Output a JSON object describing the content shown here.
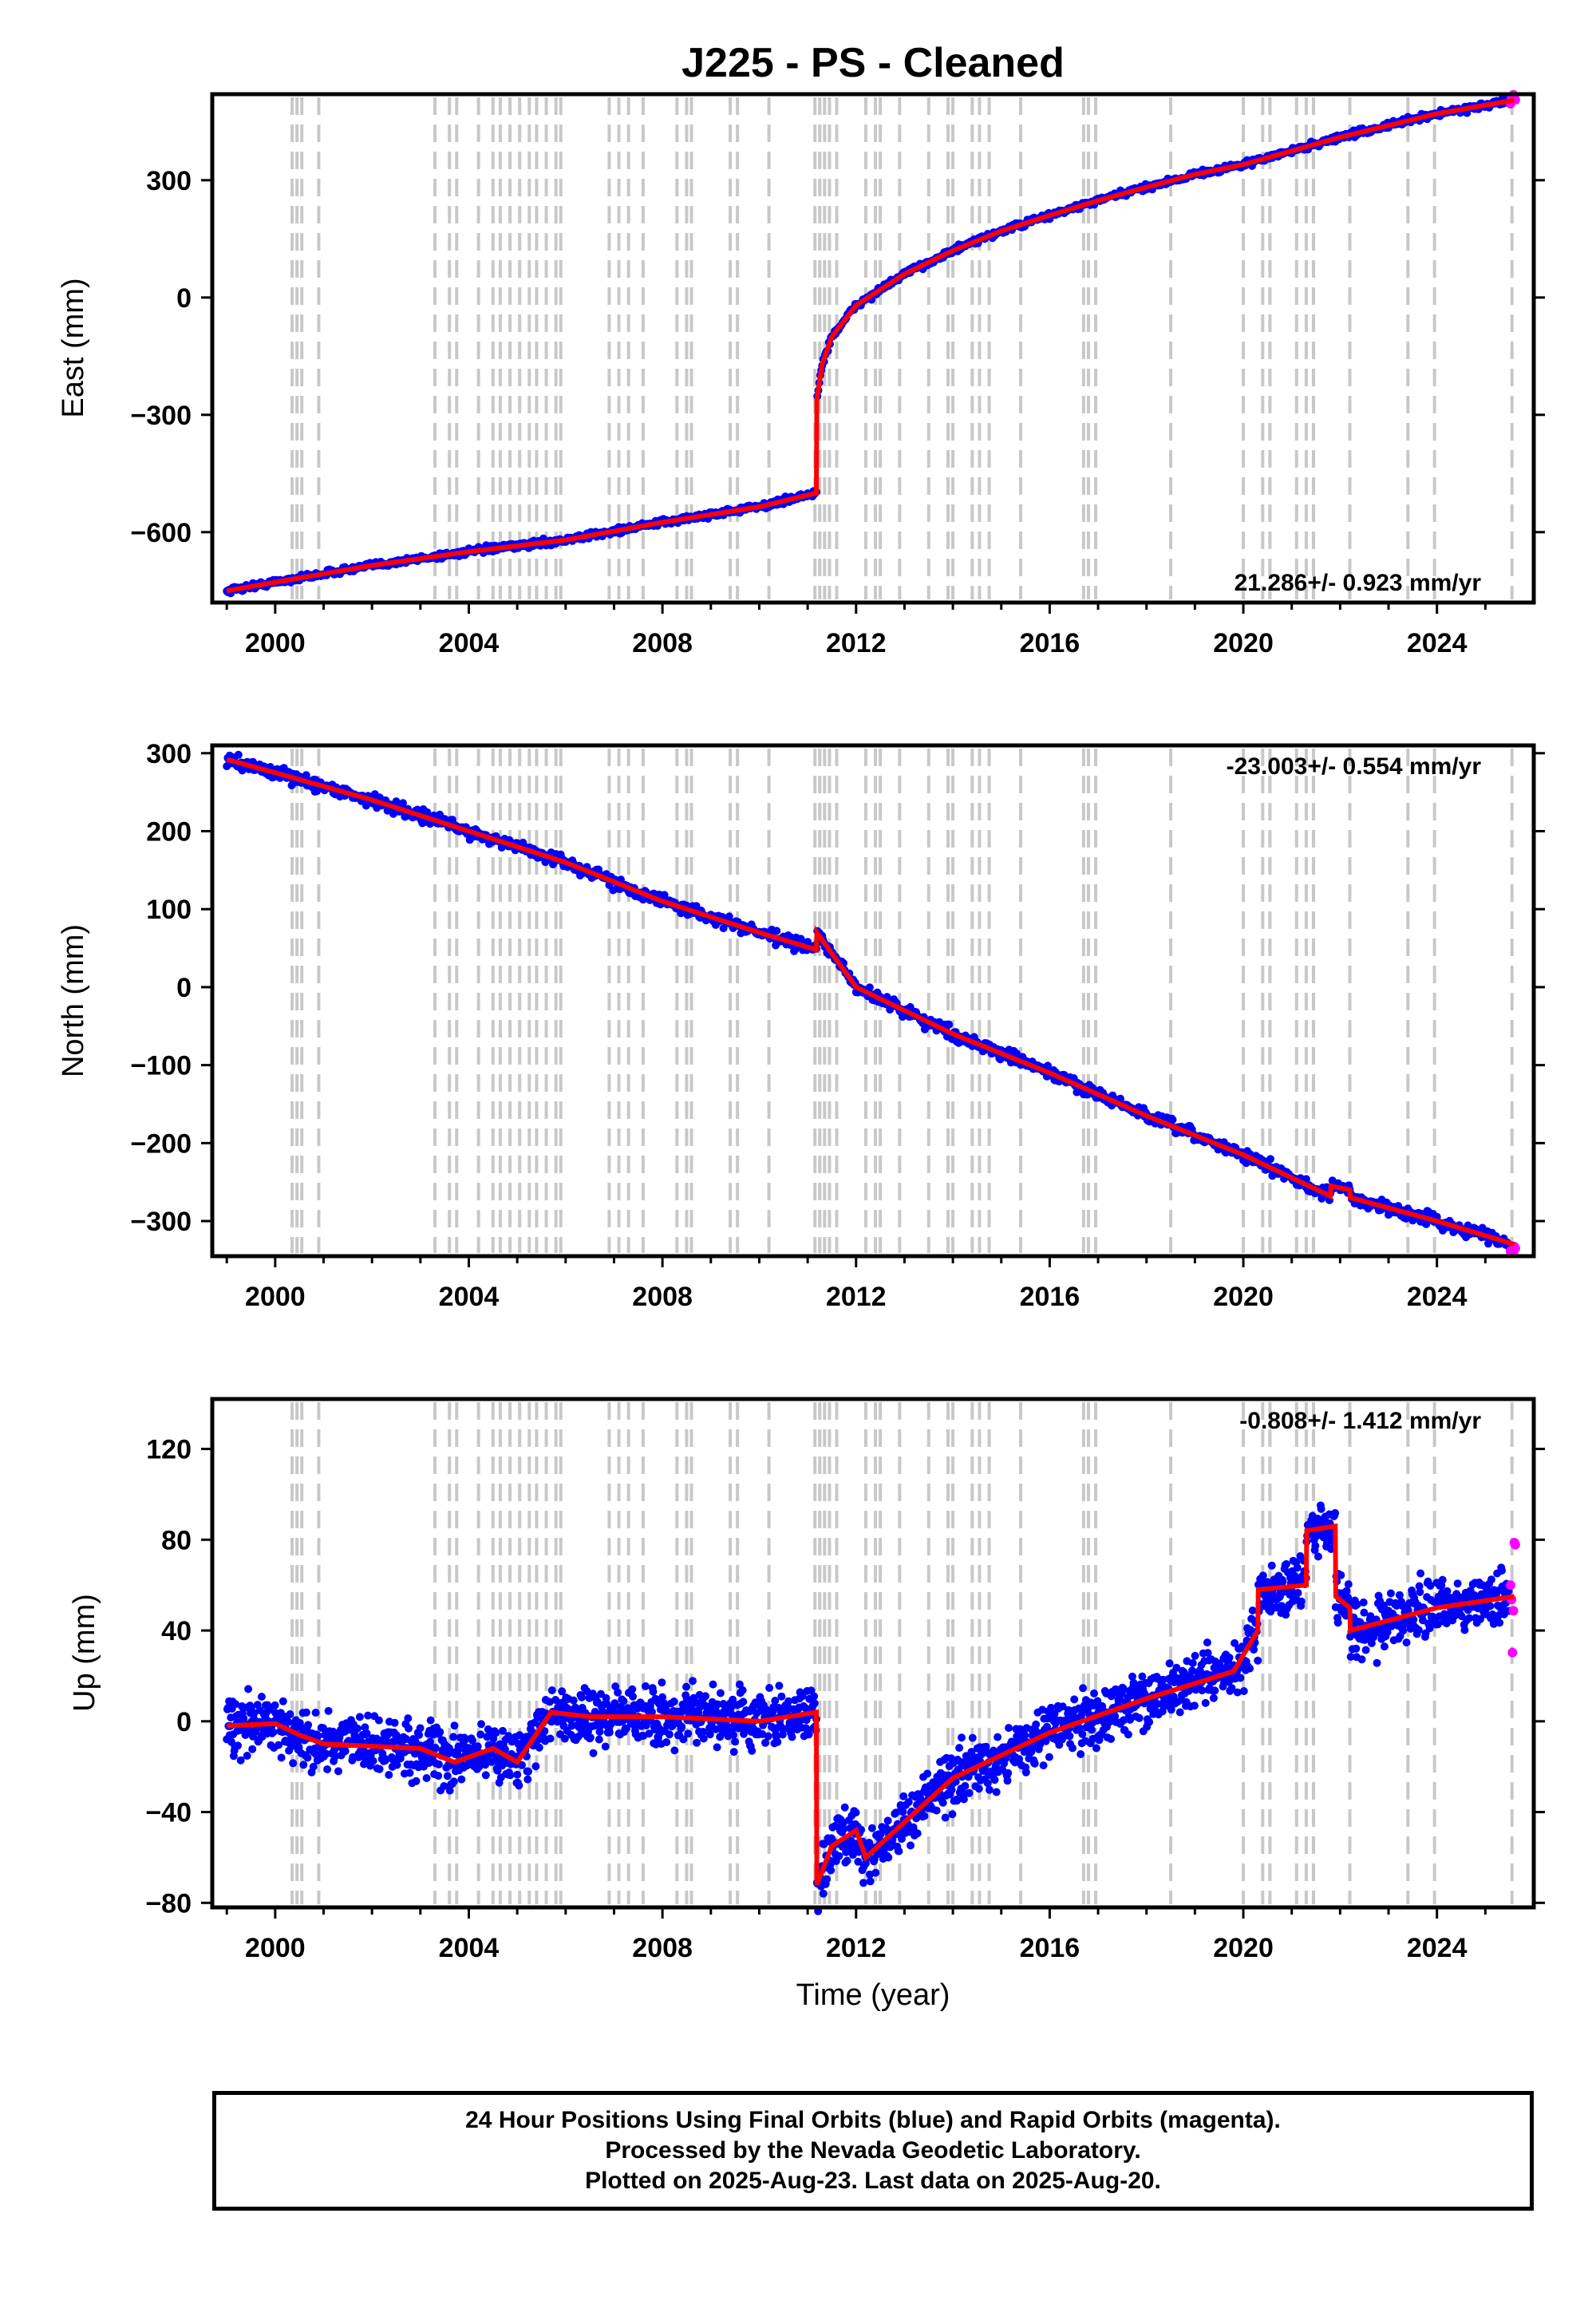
{
  "title": "J225  - PS - Cleaned",
  "footer": {
    "line1": "24 Hour Positions Using Final Orbits (blue) and Rapid Orbits (magenta).",
    "line2": "Processed by the Nevada Geodetic Laboratory.",
    "line3": "Plotted on 2025-Aug-23. Last data on 2025-Aug-20."
  },
  "colors": {
    "final_orbits": "#0000ff",
    "rapid_orbits": "#ff00ff",
    "model": "#ff0000",
    "event_lines": "#c8c8c8"
  },
  "chart_data": [
    {
      "type": "scatter",
      "name": "east",
      "ylabel": "East (mm)",
      "xlabel": "",
      "xlim": [
        1998.7,
        2026.0
      ],
      "ylim": [
        -780,
        520
      ],
      "yticks": [
        -600,
        -300,
        0,
        300
      ],
      "xticks": [
        2000,
        2004,
        2008,
        2012,
        2016,
        2020,
        2024
      ],
      "rate_label": "21.286+/- 0.923 mm/yr",
      "rate_position": "bottom-right",
      "model_series": {
        "x": [
          1999.0,
          2000.0,
          2002.0,
          2004.0,
          2006.0,
          2008.0,
          2010.0,
          2011.18,
          2011.19,
          2011.3,
          2011.5,
          2012.0,
          2013.0,
          2014.0,
          2015.0,
          2016.0,
          2017.0,
          2018.0,
          2019.0,
          2020.0,
          2021.0,
          2022.0,
          2023.0,
          2024.0,
          2025.6
        ],
        "y": [
          -750,
          -728,
          -685,
          -650,
          -620,
          -575,
          -535,
          -500,
          -260,
          -170,
          -100,
          -20,
          60,
          120,
          170,
          210,
          248,
          282,
          315,
          340,
          375,
          410,
          440,
          470,
          505
        ]
      },
      "noise_mm": 4
    },
    {
      "type": "scatter",
      "name": "north",
      "ylabel": "North (mm)",
      "xlabel": "",
      "xlim": [
        1998.7,
        2026.0
      ],
      "ylim": [
        -345,
        310
      ],
      "yticks": [
        -300,
        -200,
        -100,
        0,
        100,
        200,
        300
      ],
      "xticks": [
        2000,
        2004,
        2008,
        2012,
        2016,
        2020,
        2024
      ],
      "rate_label": "-23.003+/- 0.554 mm/yr",
      "rate_position": "top-right",
      "model_series": {
        "x": [
          1999.0,
          2000.0,
          2002.0,
          2004.0,
          2006.0,
          2008.0,
          2010.0,
          2011.18,
          2011.19,
          2012.0,
          2014.0,
          2016.0,
          2018.0,
          2020.0,
          2021.8,
          2021.81,
          2022.2,
          2022.21,
          2024.0,
          2025.6
        ],
        "y": [
          292,
          275,
          240,
          200,
          160,
          110,
          70,
          48,
          70,
          0,
          -60,
          -110,
          -165,
          -215,
          -268,
          -255,
          -260,
          -270,
          -300,
          -330
        ]
      },
      "noise_mm": 4
    },
    {
      "type": "scatter",
      "name": "up",
      "ylabel": "Up (mm)",
      "xlabel": "Time (year)",
      "xlim": [
        1998.7,
        2026.0
      ],
      "ylim": [
        -82,
        142
      ],
      "yticks": [
        -80,
        -40,
        0,
        40,
        80,
        120
      ],
      "xticks": [
        2000,
        2004,
        2008,
        2012,
        2016,
        2020,
        2024
      ],
      "rate_label": "-0.808+/- 1.412 mm/yr",
      "rate_position": "top-right",
      "model_series": {
        "x": [
          1999.0,
          2000.0,
          2000.5,
          2001.0,
          2003.0,
          2003.7,
          2004.5,
          2005.0,
          2005.7,
          2006.5,
          2008.0,
          2010.0,
          2011.18,
          2011.19,
          2011.5,
          2012.0,
          2012.2,
          2014.0,
          2016.0,
          2018.0,
          2019.8,
          2020.3,
          2020.31,
          2021.3,
          2021.31,
          2021.9,
          2021.91,
          2022.2,
          2022.21,
          2024.0,
          2025.6
        ],
        "y": [
          -2,
          -1,
          -6,
          -10,
          -12,
          -18,
          -12,
          -18,
          4,
          2,
          2,
          0,
          4,
          -72,
          -55,
          -48,
          -60,
          -25,
          -5,
          10,
          22,
          40,
          58,
          60,
          84,
          86,
          55,
          50,
          40,
          50,
          55
        ]
      },
      "noise_mm": 6
    }
  ],
  "events": [
    2000.35,
    2000.45,
    2000.55,
    2000.9,
    2003.3,
    2003.6,
    2003.75,
    2004.2,
    2004.5,
    2004.65,
    2004.85,
    2005.05,
    2005.25,
    2005.4,
    2005.6,
    2005.8,
    2005.9,
    2006.9,
    2007.1,
    2007.3,
    2007.6,
    2008.3,
    2008.5,
    2008.6,
    2009.4,
    2009.55,
    2010.2,
    2011.15,
    2011.25,
    2011.35,
    2011.45,
    2011.6,
    2012.2,
    2012.4,
    2012.5,
    2012.9,
    2013.5,
    2013.9,
    2014.0,
    2014.4,
    2014.55,
    2014.75,
    2015.4,
    2016.7,
    2016.8,
    2016.95,
    2018.5,
    2020.0,
    2020.4,
    2020.55,
    2021.1,
    2021.3,
    2021.45,
    2022.2,
    2023.4,
    2023.95,
    2025.55
  ]
}
